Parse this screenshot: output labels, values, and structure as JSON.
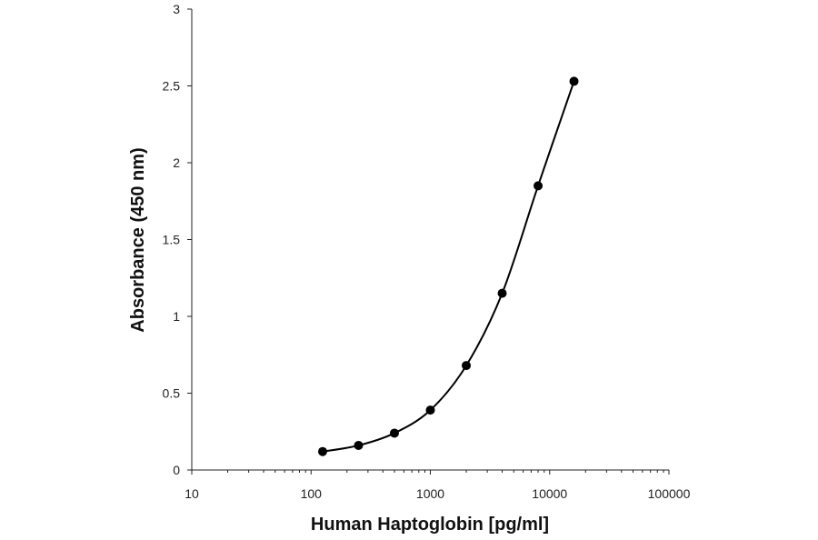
{
  "chart_data": {
    "type": "line",
    "title": "",
    "xlabel": "Human Haptoglobin [pg/ml]",
    "ylabel": "Absorbance (450 nm)",
    "x_scale": "log",
    "xlim": [
      10,
      100000
    ],
    "ylim": [
      0,
      3
    ],
    "x_ticks": [
      10,
      100,
      1000,
      10000,
      100000
    ],
    "x_tick_labels": [
      "10",
      "100",
      "1000",
      "10000",
      "100000"
    ],
    "y_ticks": [
      0,
      0.5,
      1,
      1.5,
      2,
      2.5,
      3
    ],
    "y_tick_labels": [
      "0",
      "0.5",
      "1",
      "1.5",
      "2",
      "2.5",
      "3"
    ],
    "grid": false,
    "legend": "none",
    "series": [
      {
        "color": "#000000",
        "points": [
          {
            "x": 125,
            "y": 0.12
          },
          {
            "x": 250,
            "y": 0.16
          },
          {
            "x": 500,
            "y": 0.24
          },
          {
            "x": 1000,
            "y": 0.39
          },
          {
            "x": 2000,
            "y": 0.68
          },
          {
            "x": 4000,
            "y": 1.15
          },
          {
            "x": 8000,
            "y": 1.85
          },
          {
            "x": 16000,
            "y": 2.53
          }
        ]
      }
    ]
  }
}
